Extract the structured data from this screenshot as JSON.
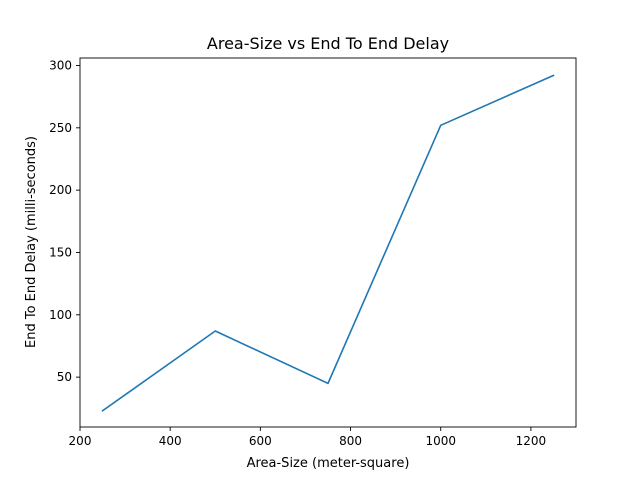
{
  "chart_data": {
    "type": "line",
    "title": "Area-Size vs End To End Delay",
    "xlabel": "Area-Size (meter-square)",
    "ylabel": "End To End Delay (milli-seconds)",
    "xlim": [
      200,
      1300
    ],
    "ylim": [
      10,
      306
    ],
    "xticks": [
      200,
      400,
      600,
      800,
      1000,
      1200
    ],
    "yticks": [
      50,
      100,
      150,
      200,
      250,
      300
    ],
    "grid": false,
    "series": [
      {
        "color": "#1f77b4",
        "x": [
          250,
          500,
          750,
          1000,
          1250
        ],
        "y": [
          23,
          87,
          45,
          252,
          292
        ]
      }
    ]
  }
}
